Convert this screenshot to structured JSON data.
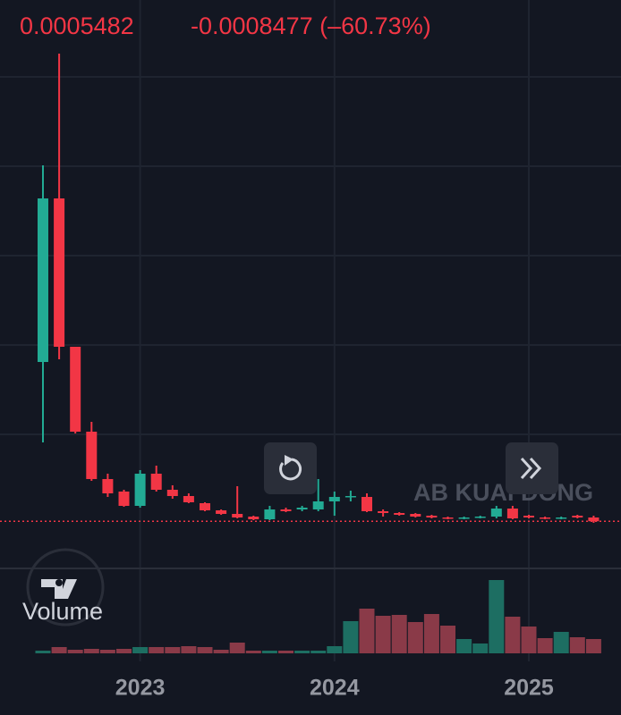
{
  "chart_data": {
    "type": "candlestick",
    "change": "-0.0008477 (–60.73%)",
    "categories": [
      null,
      null,
      null,
      null,
      null,
      null,
      "2023",
      null,
      null,
      null,
      null,
      null,
      null,
      null,
      null,
      null,
      null,
      null,
      "2024",
      null,
      null,
      null,
      null,
      null,
      null,
      null,
      null,
      null,
      null,
      null,
      "2025",
      null,
      null,
      null,
      null
    ],
    "open": [
      0.0362,
      0.0728,
      0.0396,
      0.0206,
      0.01,
      0.0072,
      0.004,
      0.0112,
      0.0076,
      0.0062,
      0.0046,
      0.003,
      0.0022,
      0.0016,
      0.001,
      0.0032,
      0.0032,
      0.0032,
      0.005,
      0.006,
      0.006,
      0.0028,
      0.0024,
      0.0022,
      0.0018,
      0.0014,
      0.0012,
      0.0014,
      0.0016,
      0.0034,
      0.0018,
      0.0014,
      0.0012,
      0.0018,
      0.0014
    ],
    "high": [
      0.0802,
      0.1052,
      0.0396,
      0.0228,
      0.0112,
      0.0076,
      0.012,
      0.013,
      0.0086,
      0.0068,
      0.0048,
      0.0032,
      0.0084,
      0.0018,
      0.004,
      0.0036,
      0.004,
      0.01,
      0.0072,
      0.0074,
      0.0068,
      0.0032,
      0.0026,
      0.0024,
      0.002,
      0.0016,
      0.0016,
      0.0018,
      0.004,
      0.004,
      0.002,
      0.0016,
      0.0016,
      0.002,
      0.0018
    ],
    "low": [
      0.0182,
      0.0368,
      0.0202,
      0.0096,
      0.006,
      0.0038,
      0.0036,
      0.0072,
      0.0056,
      0.0046,
      0.0028,
      0.002,
      0.0012,
      0.0008,
      0.0008,
      0.0026,
      0.0028,
      0.0028,
      0.0018,
      0.005,
      0.0026,
      0.0016,
      0.0018,
      0.0014,
      0.0012,
      0.001,
      0.001,
      0.0012,
      0.0012,
      0.001,
      0.0012,
      0.001,
      0.001,
      0.0012,
      0.0002
    ],
    "close": [
      0.0728,
      0.0396,
      0.0206,
      0.01,
      0.0068,
      0.004,
      0.0112,
      0.0076,
      0.0062,
      0.0048,
      0.003,
      0.0022,
      0.0014,
      0.001,
      0.0032,
      0.0028,
      0.0036,
      0.005,
      0.006,
      0.0062,
      0.0028,
      0.0024,
      0.002,
      0.0016,
      0.0014,
      0.0012,
      0.0014,
      0.0016,
      0.0034,
      0.0012,
      0.0014,
      0.0012,
      0.0014,
      0.0014,
      0.0005482
    ],
    "volume_label": "Volume",
    "volume": [
      3,
      7,
      4,
      5,
      4,
      5,
      7,
      7,
      7,
      8,
      7,
      4,
      12,
      3,
      3,
      3,
      3,
      3,
      8,
      36,
      50,
      42,
      43,
      35,
      44,
      31,
      16,
      11,
      82,
      41,
      30,
      17,
      24,
      18,
      16
    ],
    "up_color": "#22ab94",
    "down_color": "#f23645",
    "up_volume_color": "#1d6e62",
    "down_volume_color": "#8a3a48",
    "ylim": [
      -0.01,
      0.1172
    ],
    "grid_lines": [
      0.02,
      0.04,
      0.06,
      0.08,
      0.1
    ],
    "volume_ylim": [
      0,
      90
    ],
    "watermark": "AB KUAI DONG"
  }
}
